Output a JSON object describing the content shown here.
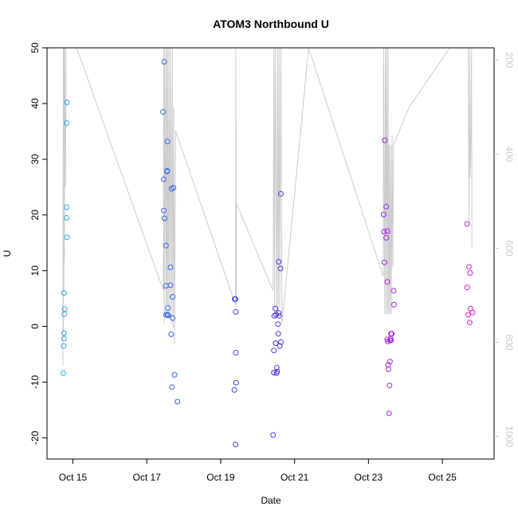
{
  "chart_data": {
    "type": "scatter",
    "title": "ATOM3 Northbound U",
    "xlabel": "Date",
    "ylabel": "U",
    "xlim": [
      14.3,
      26.4
    ],
    "ylim": [
      -23.8,
      50
    ],
    "x_ticks": [
      {
        "x": 15,
        "label": "Oct 15"
      },
      {
        "x": 17,
        "label": "Oct 17"
      },
      {
        "x": 19,
        "label": "Oct 19"
      },
      {
        "x": 21,
        "label": "Oct 21"
      },
      {
        "x": 23,
        "label": "Oct 23"
      },
      {
        "x": 25,
        "label": "Oct 25"
      }
    ],
    "y_ticks": [
      -20,
      -10,
      0,
      10,
      20,
      30,
      40,
      50
    ],
    "right_axis": {
      "label": "",
      "ylim": [
        1048,
        174
      ],
      "ticks": [
        200,
        400,
        600,
        800,
        1000
      ],
      "color": "#c8c8c8"
    },
    "colors": {
      "start": "#2aa8e8",
      "mid": "#3b3bea",
      "end": "#e01ad8",
      "line": "#cccccc",
      "axis": "#000000"
    },
    "points": [
      [
        14.74,
        -8.4
      ],
      [
        14.75,
        -3.5
      ],
      [
        14.76,
        -2.2
      ],
      [
        14.76,
        -1.2
      ],
      [
        14.77,
        2.2
      ],
      [
        14.78,
        3.1
      ],
      [
        14.76,
        6.0
      ],
      [
        14.84,
        16.0
      ],
      [
        14.83,
        19.5
      ],
      [
        14.83,
        21.4
      ],
      [
        14.83,
        36.5
      ],
      [
        14.84,
        40.2
      ],
      [
        17.44,
        38.5
      ],
      [
        17.47,
        47.5
      ],
      [
        17.46,
        26.4
      ],
      [
        17.46,
        20.8
      ],
      [
        17.48,
        19.4
      ],
      [
        17.52,
        14.5
      ],
      [
        17.52,
        7.3
      ],
      [
        17.52,
        2.1
      ],
      [
        17.55,
        27.9
      ],
      [
        17.55,
        27.8
      ],
      [
        17.56,
        33.2
      ],
      [
        17.57,
        3.3
      ],
      [
        17.56,
        2.1
      ],
      [
        17.58,
        2.0
      ],
      [
        17.64,
        10.6
      ],
      [
        17.64,
        7.4
      ],
      [
        17.66,
        -1.4
      ],
      [
        17.67,
        24.7
      ],
      [
        17.7,
        5.3
      ],
      [
        17.7,
        1.5
      ],
      [
        17.72,
        24.9
      ],
      [
        17.75,
        -8.7
      ],
      [
        17.68,
        -10.9
      ],
      [
        17.83,
        -13.5
      ],
      [
        19.38,
        4.9
      ],
      [
        19.4,
        4.9
      ],
      [
        19.41,
        2.6
      ],
      [
        19.41,
        -4.7
      ],
      [
        19.42,
        -10.1
      ],
      [
        19.37,
        -11.4
      ],
      [
        19.4,
        -21.2
      ],
      [
        20.42,
        -19.5
      ],
      [
        20.45,
        1.9
      ],
      [
        20.44,
        -4.3
      ],
      [
        20.44,
        -8.3
      ],
      [
        20.48,
        3.2
      ],
      [
        20.49,
        -3.0
      ],
      [
        20.5,
        2.1
      ],
      [
        20.51,
        -8.4
      ],
      [
        20.52,
        -7.4
      ],
      [
        20.53,
        -8.1
      ],
      [
        20.55,
        0.4
      ],
      [
        20.56,
        -1.3
      ],
      [
        20.57,
        11.6
      ],
      [
        20.57,
        2.4
      ],
      [
        20.58,
        1.9
      ],
      [
        20.6,
        -3.5
      ],
      [
        20.62,
        10.4
      ],
      [
        20.63,
        -2.8
      ],
      [
        20.63,
        23.8
      ],
      [
        23.41,
        20.1
      ],
      [
        23.42,
        17.0
      ],
      [
        23.43,
        11.5
      ],
      [
        23.44,
        33.4
      ],
      [
        23.48,
        21.5
      ],
      [
        23.48,
        15.9
      ],
      [
        23.51,
        17.1
      ],
      [
        23.51,
        8.0
      ],
      [
        23.51,
        -2.3
      ],
      [
        23.52,
        -2.7
      ],
      [
        23.53,
        -6.9
      ],
      [
        23.54,
        -7.7
      ],
      [
        23.56,
        -15.6
      ],
      [
        23.57,
        -10.6
      ],
      [
        23.58,
        -6.3
      ],
      [
        23.58,
        -2.5
      ],
      [
        23.6,
        -2.2
      ],
      [
        23.61,
        -2.5
      ],
      [
        23.61,
        -1.3
      ],
      [
        23.63,
        -1.3
      ],
      [
        23.68,
        6.4
      ],
      [
        23.69,
        3.9
      ],
      [
        25.67,
        18.4
      ],
      [
        25.67,
        7.0
      ],
      [
        25.7,
        2.1
      ],
      [
        25.72,
        10.7
      ],
      [
        25.74,
        0.7
      ],
      [
        25.75,
        9.6
      ],
      [
        25.76,
        3.2
      ],
      [
        25.82,
        2.5
      ]
    ],
    "pressure_line": [
      [
        14.73,
        850
      ],
      [
        14.74,
        174
      ],
      [
        14.745,
        780
      ],
      [
        14.75,
        174
      ],
      [
        14.755,
        690
      ],
      [
        14.76,
        174
      ],
      [
        14.77,
        630
      ],
      [
        14.78,
        174
      ],
      [
        14.8,
        470
      ],
      [
        14.82,
        174
      ],
      [
        14.84,
        174
      ],
      [
        15.1,
        174
      ],
      [
        17.45,
        690
      ],
      [
        17.46,
        174
      ],
      [
        17.47,
        760
      ],
      [
        17.49,
        174
      ],
      [
        17.52,
        750
      ],
      [
        17.53,
        174
      ],
      [
        17.55,
        720
      ],
      [
        17.56,
        174
      ],
      [
        17.58,
        750
      ],
      [
        17.6,
        174
      ],
      [
        17.62,
        740
      ],
      [
        17.64,
        174
      ],
      [
        17.67,
        760
      ],
      [
        17.69,
        174
      ],
      [
        17.71,
        770
      ],
      [
        17.73,
        300
      ],
      [
        17.75,
        805
      ],
      [
        17.78,
        350
      ],
      [
        19.4,
        720
      ],
      [
        19.41,
        174
      ],
      [
        19.42,
        720
      ],
      [
        19.43,
        505
      ],
      [
        20.42,
        690
      ],
      [
        20.44,
        174
      ],
      [
        20.46,
        740
      ],
      [
        20.48,
        174
      ],
      [
        20.52,
        745
      ],
      [
        20.54,
        174
      ],
      [
        20.56,
        735
      ],
      [
        20.58,
        174
      ],
      [
        20.6,
        725
      ],
      [
        20.63,
        174
      ],
      [
        20.66,
        760
      ],
      [
        21.38,
        174
      ],
      [
        23.4,
        660
      ],
      [
        23.41,
        174
      ],
      [
        23.44,
        740
      ],
      [
        23.46,
        174
      ],
      [
        23.48,
        740
      ],
      [
        23.49,
        174
      ],
      [
        23.52,
        740
      ],
      [
        23.53,
        174
      ],
      [
        23.55,
        740
      ],
      [
        23.56,
        380
      ],
      [
        23.58,
        740
      ],
      [
        23.6,
        380
      ],
      [
        23.62,
        740
      ],
      [
        23.64,
        360
      ],
      [
        23.66,
        640
      ],
      [
        23.68,
        380
      ],
      [
        24.1,
        300
      ],
      [
        25.2,
        174
      ],
      [
        25.7,
        174
      ],
      [
        25.72,
        550
      ],
      [
        25.74,
        174
      ],
      [
        25.75,
        450
      ],
      [
        25.77,
        380
      ],
      [
        25.79,
        174
      ],
      [
        25.8,
        600
      ]
    ]
  }
}
